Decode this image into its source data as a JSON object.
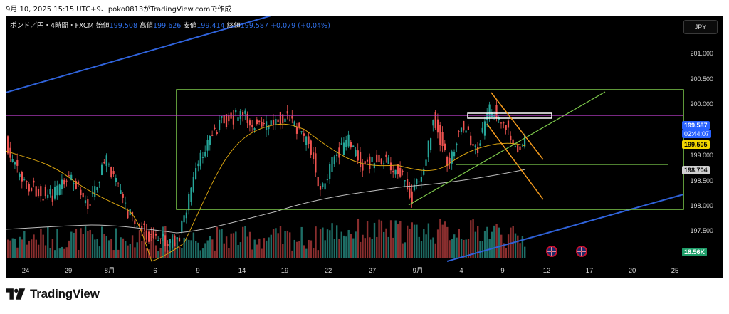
{
  "caption": "9月 10, 2025 15:15 UTC+9、poko0813がTradingView.comで作成",
  "legend": {
    "symbol": "ポンド／円・4時間・FXCM",
    "open_label": "始値",
    "open": "199.508",
    "high_label": "高値",
    "high": "199.626",
    "low_label": "安値",
    "low": "199.414",
    "close_label": "終値",
    "close": "199.587",
    "change": "+0.079 (+0.04%)"
  },
  "currency_button": "JPY",
  "price_axis": {
    "ticks": [
      "201.000",
      "200.500",
      "200.000",
      "199.000",
      "198.500",
      "198.000",
      "197.500"
    ]
  },
  "price_tags": {
    "current_price": "199.587",
    "countdown": "02:44:07",
    "ma_fast": "199.505",
    "ma_slow": "198.704",
    "volume": "18.56K"
  },
  "time_axis": {
    "ticks": [
      "24",
      "29",
      "8月",
      "6",
      "9",
      "14",
      "19",
      "22",
      "27",
      "9月",
      "4",
      "9",
      "12",
      "17",
      "20",
      "25"
    ]
  },
  "brand": "TradingView",
  "colors": {
    "background": "#000000",
    "candle_up": "#26a69a",
    "candle_down": "#ef5350",
    "box_green": "#7ecb4c",
    "magenta_line": "#c040d0",
    "orange_lines": "#f39a1d",
    "blue_channel": "#2f62d9",
    "ma_fast": "#d9a410",
    "ma_slow": "#bdbdbd"
  }
}
